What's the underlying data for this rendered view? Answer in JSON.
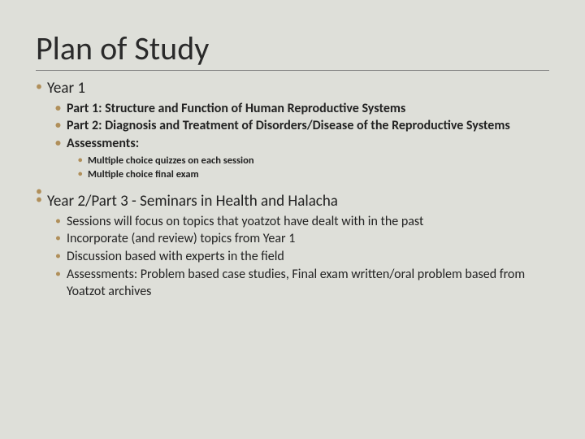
{
  "title": "Plan of Study",
  "colors": {
    "background": "#dedfd9",
    "text": "#222222",
    "bullet": "#b08f5a",
    "rule": "#7a7a7a"
  },
  "typography": {
    "title_fontsize": 40,
    "lvl1_fontsize": 19,
    "lvl2_fontsize": 16,
    "lvl3_fontsize": 12.5,
    "title_weight": 400,
    "lvl2_bold_weight": 700
  },
  "sections": [
    {
      "heading": "Year 1",
      "items_bold": true,
      "items": [
        "Part 1: Structure and Function of Human Reproductive Systems",
        "Part 2: Diagnosis and Treatment of Disorders/Disease of the Reproductive Systems",
        "Assessments:"
      ],
      "subitems": [
        "Multiple choice quizzes on each session",
        "Multiple choice final exam"
      ]
    },
    {
      "heading": "Year 2/Part 3 - Seminars in Health and Halacha",
      "items_bold": false,
      "items": [
        "Sessions will focus on topics that yoatzot have dealt with in the past",
        "Incorporate (and review) topics from Year 1",
        "Discussion based with experts in the field",
        "Assessments: Problem based case studies, Final exam written/oral problem based from Yoatzot archives"
      ],
      "subitems": []
    }
  ]
}
